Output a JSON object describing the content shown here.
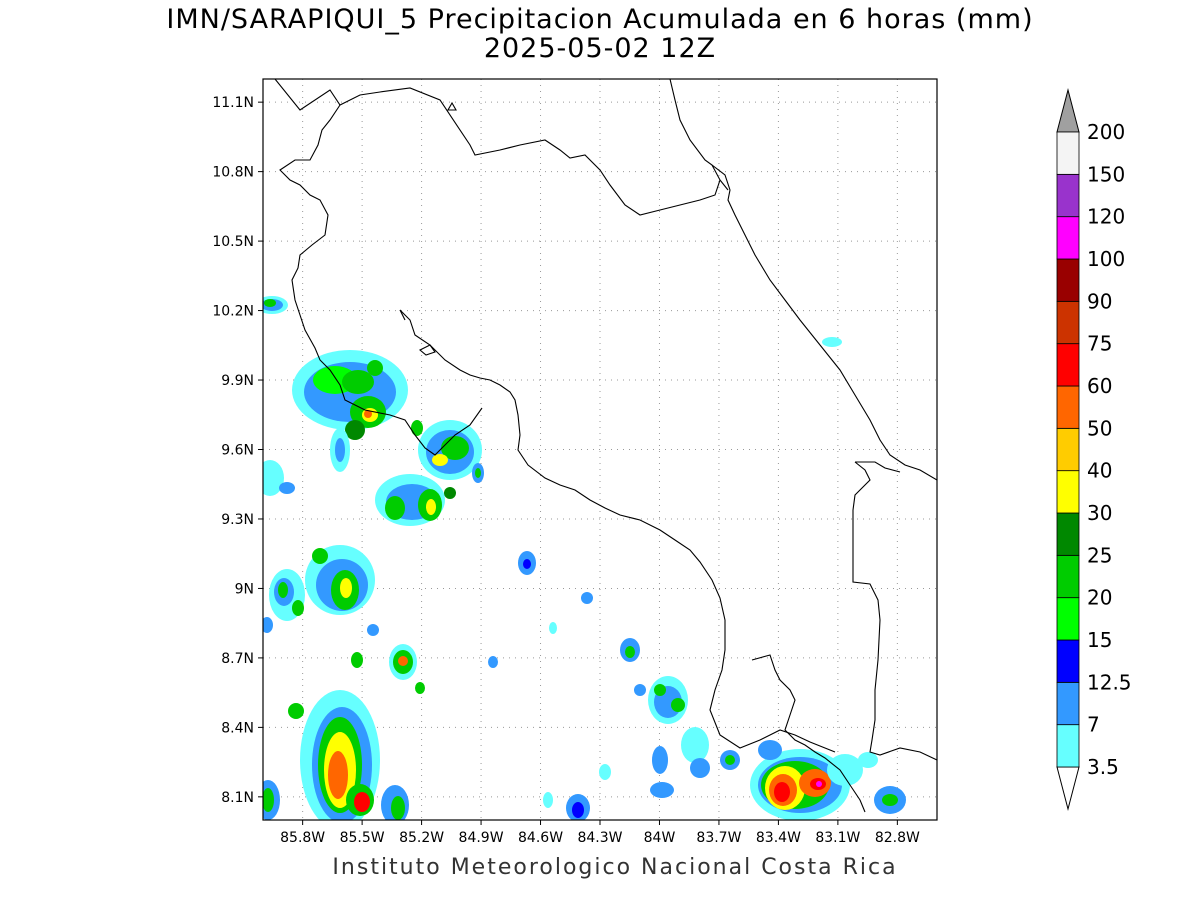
{
  "title": {
    "line1": "IMN/SARAPIQUI_5 Precipitacion Acumulada en 6 horas (mm)",
    "line2": "2025-05-02 12Z"
  },
  "footer": "Instituto Meteorologico Nacional Costa Rica",
  "map": {
    "lon_range": [
      -86.0,
      -82.6
    ],
    "lat_range": [
      8.0,
      11.2
    ],
    "lat_ticks": [
      {
        "value": 11.1,
        "label": "11.1N"
      },
      {
        "value": 10.8,
        "label": "10.8N"
      },
      {
        "value": 10.5,
        "label": "10.5N"
      },
      {
        "value": 10.2,
        "label": "10.2N"
      },
      {
        "value": 9.9,
        "label": "9.9N"
      },
      {
        "value": 9.6,
        "label": "9.6N"
      },
      {
        "value": 9.3,
        "label": "9.3N"
      },
      {
        "value": 9.0,
        "label": "9N"
      },
      {
        "value": 8.7,
        "label": "8.7N"
      },
      {
        "value": 8.4,
        "label": "8.4N"
      },
      {
        "value": 8.1,
        "label": "8.1N"
      }
    ],
    "lon_ticks": [
      {
        "value": -85.8,
        "label": "85.8W"
      },
      {
        "value": -85.5,
        "label": "85.5W"
      },
      {
        "value": -85.2,
        "label": "85.2W"
      },
      {
        "value": -84.9,
        "label": "84.9W"
      },
      {
        "value": -84.6,
        "label": "84.6W"
      },
      {
        "value": -84.3,
        "label": "84.3W"
      },
      {
        "value": -84.0,
        "label": "84W"
      },
      {
        "value": -83.7,
        "label": "83.7W"
      },
      {
        "value": -83.4,
        "label": "83.4W"
      },
      {
        "value": -83.1,
        "label": "83.1W"
      },
      {
        "value": -82.8,
        "label": "82.8W"
      }
    ],
    "grid": true
  },
  "colorbar": {
    "levels": [
      {
        "label": "3.5",
        "color": "#66ffff"
      },
      {
        "label": "7",
        "color": "#3399ff"
      },
      {
        "label": "12.5",
        "color": "#0000ff"
      },
      {
        "label": "15",
        "color": "#00ff00"
      },
      {
        "label": "20",
        "color": "#00cc00"
      },
      {
        "label": "25",
        "color": "#008800"
      },
      {
        "label": "30",
        "color": "#ffff00"
      },
      {
        "label": "40",
        "color": "#ffcc00"
      },
      {
        "label": "50",
        "color": "#ff6600"
      },
      {
        "label": "60",
        "color": "#ff0000"
      },
      {
        "label": "75",
        "color": "#cc3300"
      },
      {
        "label": "90",
        "color": "#990000"
      },
      {
        "label": "100",
        "color": "#ff00ff"
      },
      {
        "label": "120",
        "color": "#9933cc"
      },
      {
        "label": "150",
        "color": "#f4f4f4"
      },
      {
        "label": "200",
        "color": ""
      }
    ],
    "over_color": "#a0a0a0",
    "under_color": "#ffffff"
  }
}
